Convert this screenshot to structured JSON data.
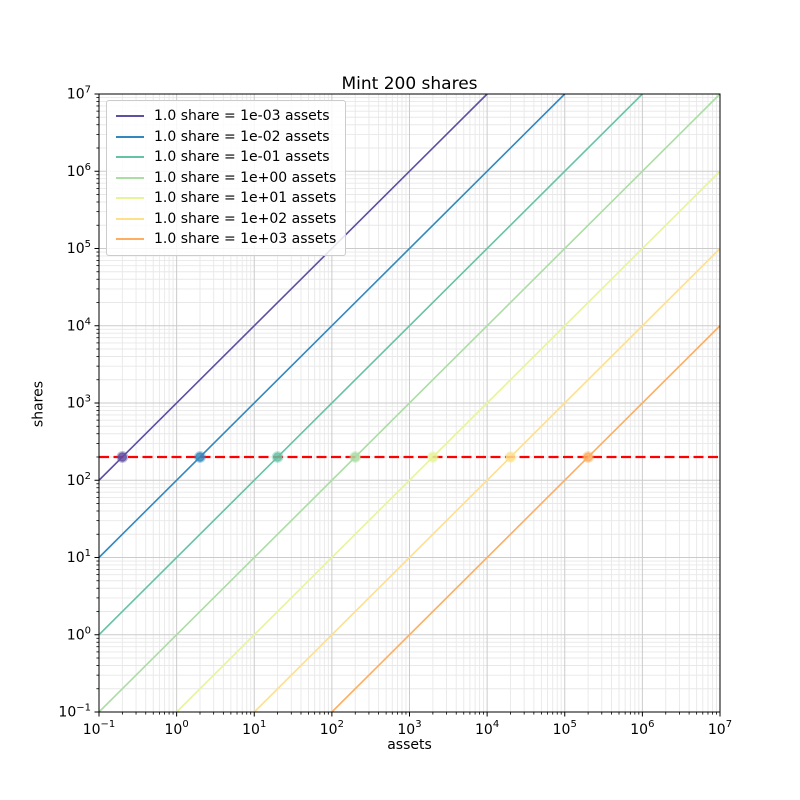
{
  "chart_data": {
    "type": "line",
    "title": "Mint 200 shares",
    "xlabel": "assets",
    "ylabel": "shares",
    "xscale": "log",
    "yscale": "log",
    "xlim": [
      0.1,
      10000000
    ],
    "ylim": [
      0.1,
      10000000
    ],
    "grid": "both (major and minor log gridlines)",
    "legend_position": "upper left",
    "x_tick_exponents": [
      -1,
      0,
      1,
      2,
      3,
      4,
      5,
      6,
      7
    ],
    "y_tick_exponents": [
      -1,
      0,
      1,
      2,
      3,
      4,
      5,
      6,
      7
    ],
    "series": [
      {
        "label": "1.0 share = 1e-03 assets",
        "assets_per_share": 0.001,
        "color": "#5e4fa2",
        "mint_point": {
          "assets": 0.2,
          "shares": 200
        }
      },
      {
        "label": "1.0 share = 1e-02 assets",
        "assets_per_share": 0.01,
        "color": "#3288bd",
        "mint_point": {
          "assets": 2,
          "shares": 200
        }
      },
      {
        "label": "1.0 share = 1e-01 assets",
        "assets_per_share": 0.1,
        "color": "#66c2a5",
        "mint_point": {
          "assets": 20,
          "shares": 200
        }
      },
      {
        "label": "1.0 share = 1e+00 assets",
        "assets_per_share": 1,
        "color": "#abdda4",
        "mint_point": {
          "assets": 200,
          "shares": 200
        }
      },
      {
        "label": "1.0 share = 1e+01 assets",
        "assets_per_share": 10,
        "color": "#e6f598",
        "mint_point": {
          "assets": 2000,
          "shares": 200
        }
      },
      {
        "label": "1.0 share = 1e+02 assets",
        "assets_per_share": 100,
        "color": "#fee08b",
        "mint_point": {
          "assets": 20000,
          "shares": 200
        }
      },
      {
        "label": "1.0 share = 1e+03 assets",
        "assets_per_share": 1000,
        "color": "#fdae61",
        "mint_point": {
          "assets": 200000,
          "shares": 200
        }
      }
    ],
    "reference_line": {
      "orientation": "horizontal",
      "shares": 200,
      "color": "#ff0000",
      "linestyle": "dashed"
    },
    "colors": {
      "major_grid": "#cbcbcb",
      "minor_grid": "#e8e8e8",
      "spine": "#000000",
      "background": "#ffffff"
    }
  }
}
